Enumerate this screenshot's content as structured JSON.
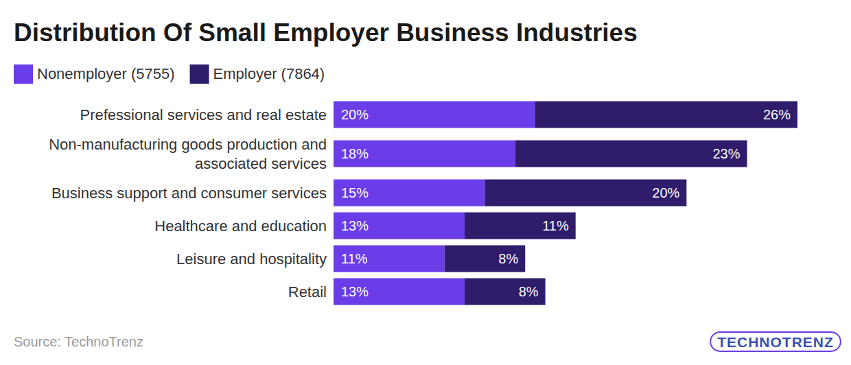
{
  "chart_data": {
    "type": "bar",
    "orientation": "horizontal",
    "stacked": true,
    "data_labels": true,
    "tick_labels": false,
    "grid": false,
    "legend": "top-left",
    "title": "Distribution Of Small Employer Business Industries",
    "source": "Source: TechnoTrenz",
    "watermark": "TECHNOTRENZ",
    "categories": [
      "Prefessional services and real estate",
      "Non-manufacturing goods production and associated services",
      "Business support and consumer services",
      "Healthcare and education",
      "Leisure and hospitality",
      "Retail"
    ],
    "xlim": [
      0,
      46
    ],
    "series": [
      {
        "name": "Nonemployer (5755)",
        "color": "#6a3de8",
        "values": [
          20,
          18,
          15,
          13,
          11,
          13
        ],
        "value_labels": [
          "20%",
          "18%",
          "15%",
          "13%",
          "11%",
          "13%"
        ]
      },
      {
        "name": "Employer (7864)",
        "color": "#2f1c6a",
        "values": [
          26,
          23,
          20,
          11,
          8,
          8
        ],
        "value_labels": [
          "26%",
          "23%",
          "20%",
          "11%",
          "8%",
          "8%"
        ]
      }
    ]
  }
}
